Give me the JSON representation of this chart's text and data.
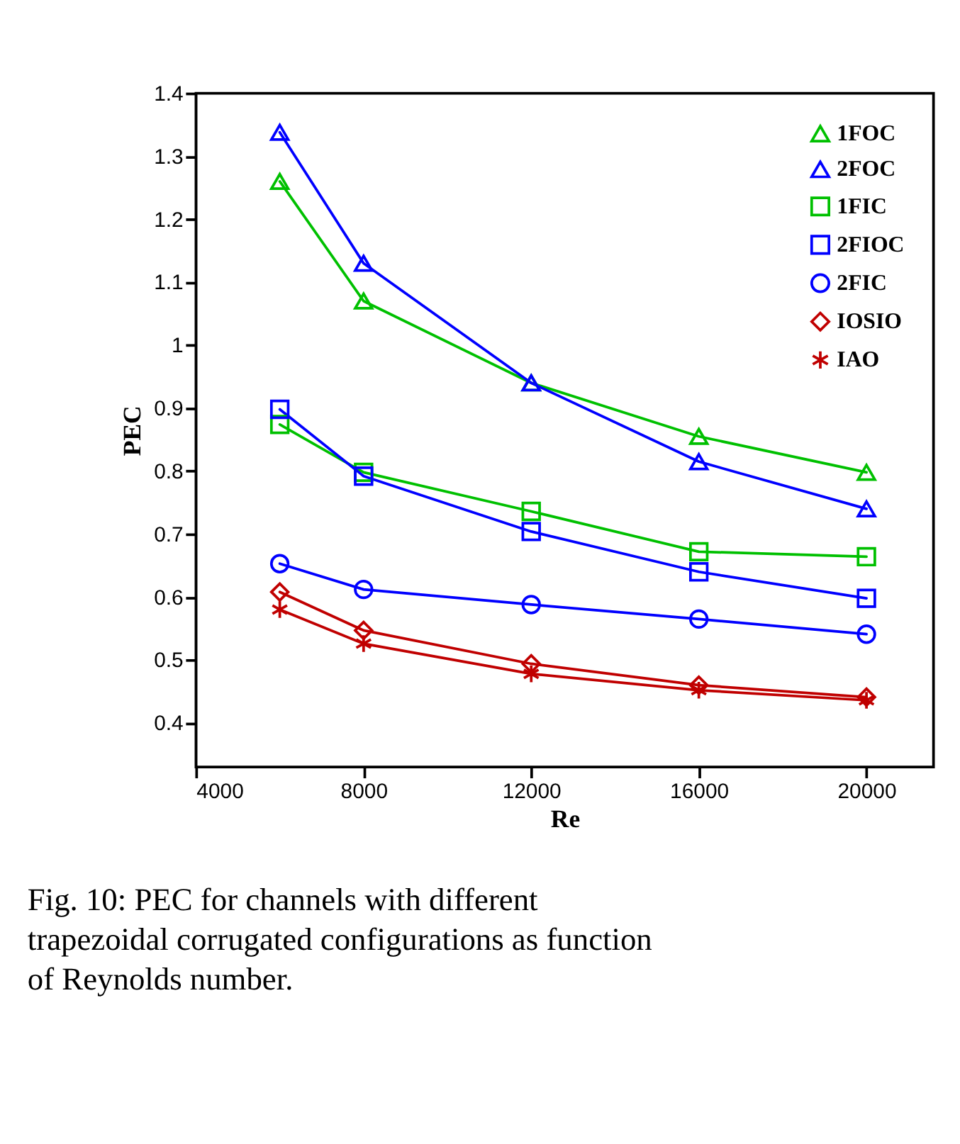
{
  "chart_data": {
    "type": "line",
    "xlabel": "Re",
    "ylabel": "PEC",
    "x": [
      6000,
      8000,
      12000,
      16000,
      20000
    ],
    "xlim": [
      4000,
      21600
    ],
    "xticks": [
      4000,
      8000,
      12000,
      16000,
      20000
    ],
    "ylim": [
      0.33,
      1.4
    ],
    "yticks": [
      0.4,
      0.5,
      0.6,
      0.7,
      0.8,
      0.9,
      {
        "value": 1,
        "label": "1"
      },
      1.1,
      1.2,
      1.3,
      1.4
    ],
    "grid": false,
    "legend": "top right",
    "series": [
      {
        "name": "1FOC",
        "color": "#00c000",
        "marker": "triangle",
        "values": [
          1.26,
          1.07,
          0.94,
          0.855,
          0.798
        ]
      },
      {
        "name": "2FOC",
        "color": "#0000ff",
        "marker": "triangle",
        "values": [
          1.338,
          1.13,
          0.94,
          0.815,
          0.74
        ]
      },
      {
        "name": "1FIC",
        "color": "#00c000",
        "marker": "square",
        "values": [
          0.874,
          0.798,
          0.736,
          0.672,
          0.664
        ]
      },
      {
        "name": "2FIOC",
        "color": "#0000ff",
        "marker": "square",
        "values": [
          0.898,
          0.792,
          0.704,
          0.64,
          0.598
        ]
      },
      {
        "name": "2FIC",
        "color": "#0000ff",
        "marker": "circle",
        "values": [
          0.653,
          0.612,
          0.588,
          0.565,
          0.541
        ]
      },
      {
        "name": "IOSIO",
        "color": "#c00000",
        "marker": "diamond",
        "values": [
          0.608,
          0.547,
          0.494,
          0.46,
          0.441
        ]
      },
      {
        "name": "IAO",
        "color": "#c00000",
        "marker": "cross",
        "values": [
          0.58,
          0.526,
          0.478,
          0.452,
          0.436
        ]
      }
    ],
    "annotations": [
      "Fig. 10: PEC for channels with different trapezoidal corrugated configurations as function of Reynolds number."
    ]
  }
}
